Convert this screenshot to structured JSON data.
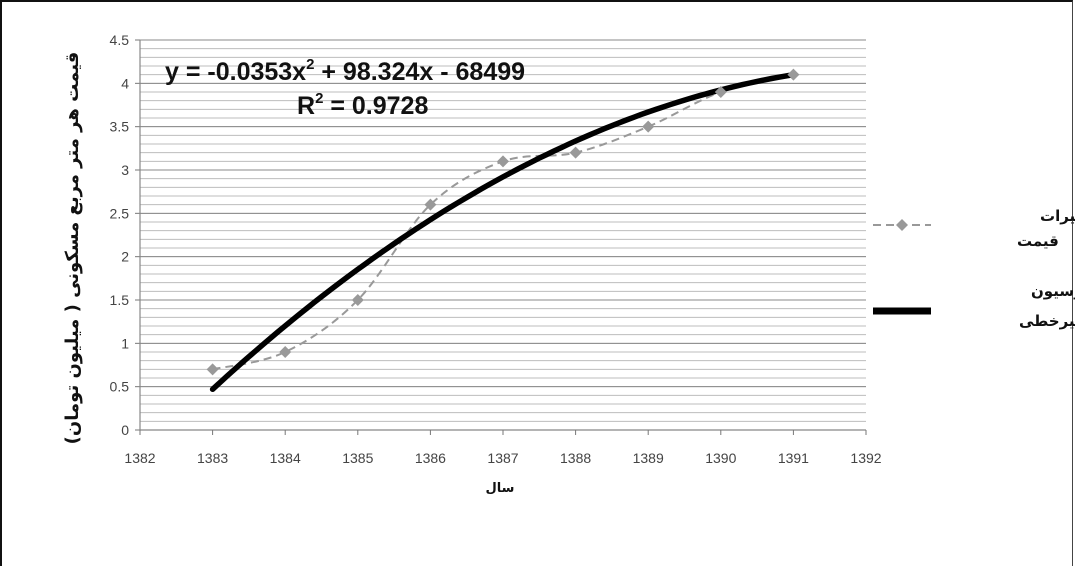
{
  "chart_data": {
    "type": "scatter",
    "xlabel": "سال",
    "ylabel": "قیمت هر متر مربع مسکونی ( میلیون تومان)",
    "xlim": [
      1382,
      1392
    ],
    "ylim": [
      0,
      4.5
    ],
    "x_ticks": [
      1382,
      1383,
      1384,
      1385,
      1386,
      1387,
      1388,
      1389,
      1390,
      1391,
      1392
    ],
    "y_ticks": [
      0,
      0.5,
      1,
      1.5,
      2,
      2.5,
      3,
      3.5,
      4,
      4.5
    ],
    "y_tick_labels": [
      "0",
      "0.5",
      "1",
      "1.5",
      "2",
      "2.5",
      "3",
      "3.5",
      "4",
      "4.5"
    ],
    "minor_grid_step": 0.1,
    "grid": true,
    "legend_position": "right",
    "series": [
      {
        "name": "روند تغییرات قیمت",
        "style": "dashed-smooth-with-markers",
        "color": "#999999",
        "x": [
          1383,
          1384,
          1385,
          1386,
          1387,
          1388,
          1389,
          1390,
          1391
        ],
        "y": [
          0.7,
          0.9,
          1.5,
          2.6,
          3.1,
          3.2,
          3.5,
          3.9,
          4.1
        ]
      },
      {
        "name": "رگرسیون غیرخطی",
        "style": "solid-thick",
        "color": "#000000",
        "model": "quadratic",
        "x_range": [
          1383,
          1391
        ],
        "y_start": 0.47,
        "y_mid": 2.92,
        "y_end": 4.1
      }
    ],
    "legend_lines": [
      [
        "روند تغییرات",
        "قیمت"
      ],
      [
        "رگرسیون",
        "غیرخطی"
      ]
    ],
    "annotations": {
      "equation": "y = -0.0353x",
      "equation_sup": "2",
      "equation_rest": " + 98.324x - 68499",
      "r2_label": "R",
      "r2_sup": "2",
      "r2_rest": " = 0.9728"
    }
  }
}
